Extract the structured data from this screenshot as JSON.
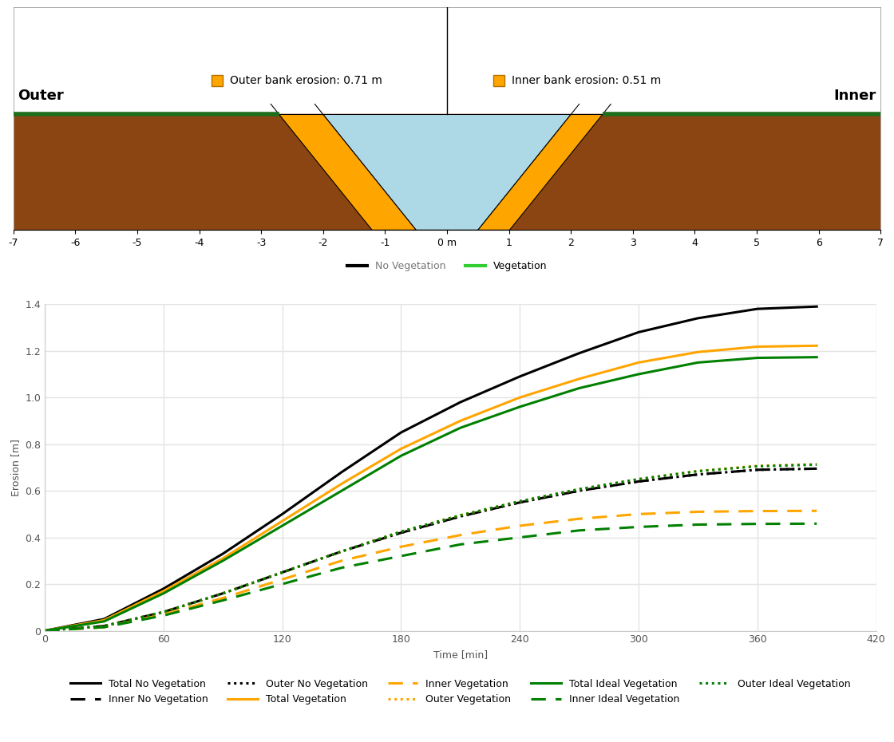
{
  "chart_data": [
    {
      "type": "cross_section",
      "xlim": [
        -7,
        7
      ],
      "xticks": [
        -7,
        -6,
        -5,
        -4,
        -3,
        -2,
        -1,
        {
          "value": 0,
          "label": "0 m"
        },
        1,
        2,
        3,
        4,
        5,
        6,
        7
      ],
      "ylim": [
        -1.9,
        1.76
      ],
      "tick_labels": "x",
      "ground_level": 0,
      "channel_bottom": -1.9,
      "centerline": 0,
      "sides": [
        {
          "name": "Outer",
          "annotation": "Outer bank erosion: 0.71 m",
          "original_bank": {
            "top": -2.0,
            "bottom": -0.5
          },
          "eroded_bank": {
            "top": -2.71,
            "bottom": -1.21
          }
        },
        {
          "name": "Inner",
          "annotation": "Inner bank erosion: 0.51 m",
          "original_bank": {
            "top": 2.0,
            "bottom": 0.5
          },
          "eroded_bank": {
            "top": 2.51,
            "bottom": 1.01
          }
        }
      ],
      "series": [
        {
          "name": "No Vegetation",
          "color": "#000000"
        },
        {
          "name": "Vegetation",
          "color": "#32cd32"
        }
      ],
      "legend": "bottom"
    },
    {
      "type": "line",
      "x_label": "Time [min]",
      "y_label": "Erosion [m]",
      "x": [
        0,
        30,
        60,
        90,
        120,
        150,
        180,
        210,
        240,
        270,
        300,
        330,
        360,
        390
      ],
      "xlim": [
        0,
        420
      ],
      "xticks": [
        0,
        60,
        120,
        180,
        240,
        300,
        360,
        420
      ],
      "ylim": [
        0,
        1.4
      ],
      "yticks": [
        0,
        0.2,
        0.4,
        0.6,
        0.8,
        {
          "value": 1,
          "label": "1.0"
        },
        1.2,
        1.4
      ],
      "grid": true,
      "legend": "bottom",
      "series": [
        {
          "name": "Total No Vegetation",
          "color": "#000000",
          "line_style": "solid",
          "values": [
            0,
            0.05,
            0.18,
            0.33,
            0.5,
            0.68,
            0.85,
            0.98,
            1.09,
            1.19,
            1.28,
            1.34,
            1.38,
            1.39
          ]
        },
        {
          "name": "Inner No Vegetation",
          "color": "#000000",
          "line_style": "dashed",
          "values": [
            0,
            0.02,
            0.08,
            0.16,
            0.25,
            0.34,
            0.42,
            0.49,
            0.55,
            0.6,
            0.64,
            0.67,
            0.69,
            0.695
          ]
        },
        {
          "name": "Outer No Vegetation",
          "color": "#000000",
          "line_style": "dotted",
          "values": [
            0,
            0.02,
            0.08,
            0.16,
            0.25,
            0.34,
            0.42,
            0.49,
            0.55,
            0.6,
            0.64,
            0.67,
            0.69,
            0.695
          ]
        },
        {
          "name": "Total Vegetation",
          "color": "#ffa500",
          "line_style": "solid",
          "values": [
            0,
            0.045,
            0.17,
            0.31,
            0.47,
            0.63,
            0.78,
            0.9,
            1.0,
            1.08,
            1.15,
            1.195,
            1.218,
            1.222
          ]
        },
        {
          "name": "Inner Vegetation",
          "color": "#ffa500",
          "line_style": "dashed",
          "values": [
            0,
            0.015,
            0.07,
            0.14,
            0.22,
            0.3,
            0.36,
            0.41,
            0.45,
            0.48,
            0.5,
            0.51,
            0.513,
            0.514
          ]
        },
        {
          "name": "Outer Vegetation",
          "color": "#ffa500",
          "line_style": "dotted",
          "values": [
            0,
            0.02,
            0.08,
            0.16,
            0.25,
            0.34,
            0.425,
            0.495,
            0.555,
            0.607,
            0.65,
            0.685,
            0.707,
            0.714
          ]
        },
        {
          "name": "Total Ideal Vegetation",
          "color": "#008000",
          "line_style": "solid",
          "values": [
            0,
            0.04,
            0.16,
            0.3,
            0.45,
            0.6,
            0.75,
            0.87,
            0.96,
            1.04,
            1.1,
            1.15,
            1.17,
            1.173
          ]
        },
        {
          "name": "Inner Ideal Vegetation",
          "color": "#008000",
          "line_style": "dashed",
          "values": [
            0,
            0.015,
            0.065,
            0.13,
            0.2,
            0.27,
            0.32,
            0.37,
            0.4,
            0.43,
            0.445,
            0.455,
            0.458,
            0.459
          ]
        },
        {
          "name": "Outer Ideal Vegetation",
          "color": "#008000",
          "line_style": "dotted",
          "values": [
            0,
            0.02,
            0.08,
            0.16,
            0.25,
            0.34,
            0.425,
            0.495,
            0.555,
            0.607,
            0.65,
            0.684,
            0.705,
            0.712
          ]
        }
      ]
    }
  ]
}
